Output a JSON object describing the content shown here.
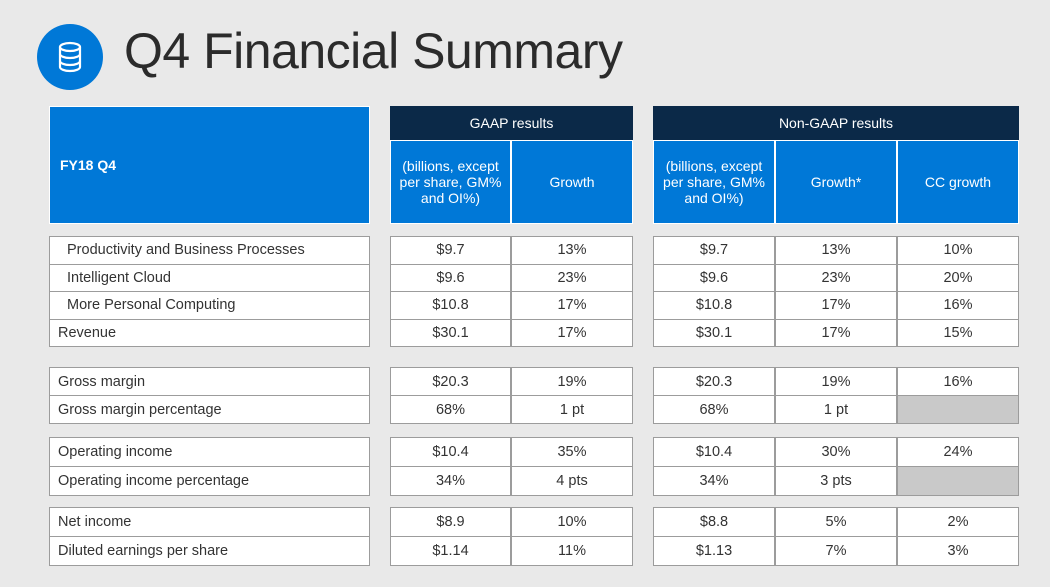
{
  "title": "Q4 Financial Summary",
  "header": {
    "corner": "FY18 Q4",
    "gaap": {
      "title": "GAAP results",
      "columns": [
        "(billions, except per share, GM% and OI%)",
        "Growth"
      ]
    },
    "non_gaap": {
      "title": "Non-GAAP results",
      "columns": [
        "(billions, except per share, GM% and OI%)",
        "Growth*",
        "CC growth"
      ]
    }
  },
  "groups": [
    {
      "rows": [
        {
          "label": "Productivity and Business Processes",
          "indent": true,
          "cells": [
            "$9.7",
            "13%",
            "$9.7",
            "13%",
            "10%"
          ]
        },
        {
          "label": "Intelligent Cloud",
          "indent": true,
          "cells": [
            "$9.6",
            "23%",
            "$9.6",
            "23%",
            "20%"
          ]
        },
        {
          "label": "More Personal Computing",
          "indent": true,
          "cells": [
            "$10.8",
            "17%",
            "$10.8",
            "17%",
            "16%"
          ]
        },
        {
          "label": "Revenue",
          "cells": [
            "$30.1",
            "17%",
            "$30.1",
            "17%",
            "15%"
          ]
        }
      ]
    },
    {
      "rows": [
        {
          "label": "Gross margin",
          "cells": [
            "$20.3",
            "19%",
            "$20.3",
            "19%",
            "16%"
          ]
        },
        {
          "label": "Gross margin percentage",
          "cells": [
            "68%",
            "1 pt",
            "68%",
            "1 pt",
            null
          ]
        }
      ]
    },
    {
      "rows": [
        {
          "label": "Operating income",
          "cells": [
            "$10.4",
            "35%",
            "$10.4",
            "30%",
            "24%"
          ]
        },
        {
          "label": "Operating income percentage",
          "cells": [
            "34%",
            "4 pts",
            "34%",
            "3 pts",
            null
          ]
        }
      ]
    },
    {
      "rows": [
        {
          "label": "Net income",
          "cells": [
            "$8.9",
            "10%",
            "$8.8",
            "5%",
            "2%"
          ]
        },
        {
          "label": "Diluted earnings per share",
          "cells": [
            "$1.14",
            "11%",
            "$1.13",
            "7%",
            "3%"
          ]
        }
      ]
    }
  ]
}
